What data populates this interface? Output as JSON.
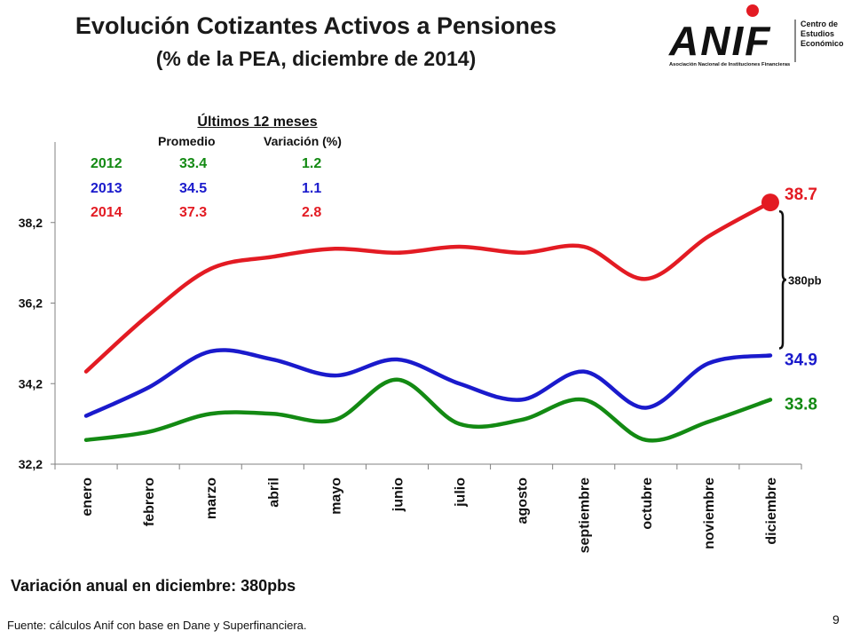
{
  "header": {
    "title": "Evolución Cotizantes Activos a Pensiones",
    "subtitle": "(% de la PEA, diciembre de 2014)"
  },
  "logo": {
    "text": "ANIF",
    "caption": "Asociación Nacional de Instituciones Financieras",
    "side_lines": [
      "Centro de",
      "Estudios",
      "Económicos"
    ],
    "accent_color": "#e31b23"
  },
  "summary": {
    "title": "Últimos 12 meses",
    "col_avg": "Promedio",
    "col_var": "Variación (%)",
    "rows": [
      {
        "year": "2012",
        "avg": "33.4",
        "var": "1.2",
        "color": "#138a13"
      },
      {
        "year": "2013",
        "avg": "34.5",
        "var": "1.1",
        "color": "#1a1acc"
      },
      {
        "year": "2014",
        "avg": "37.3",
        "var": "2.8",
        "color": "#e31b23"
      }
    ]
  },
  "chart_data": {
    "type": "line",
    "categories": [
      "enero",
      "febrero",
      "marzo",
      "abril",
      "mayo",
      "junio",
      "julio",
      "agosto",
      "septiembre",
      "octubre",
      "noviembre",
      "diciembre"
    ],
    "y_ticks": [
      "32,2",
      "34,2",
      "36,2",
      "38,2"
    ],
    "y_tick_values": [
      32.2,
      34.2,
      36.2,
      38.2
    ],
    "ylim": [
      32.2,
      40.2
    ],
    "series": [
      {
        "name": "2012",
        "color": "#138a13",
        "values": [
          32.8,
          33.0,
          33.45,
          33.45,
          33.3,
          34.3,
          33.2,
          33.3,
          33.8,
          32.8,
          33.25,
          33.8
        ],
        "end_label": "33.8"
      },
      {
        "name": "2013",
        "color": "#1a1acc",
        "values": [
          33.4,
          34.1,
          35.0,
          34.8,
          34.4,
          34.8,
          34.2,
          33.8,
          34.5,
          33.6,
          34.7,
          34.9
        ],
        "end_label": "34.9"
      },
      {
        "name": "2014",
        "color": "#e31b23",
        "values": [
          34.5,
          35.9,
          37.05,
          37.35,
          37.55,
          37.45,
          37.6,
          37.45,
          37.6,
          36.8,
          37.85,
          38.7
        ],
        "end_label": "38.7"
      }
    ],
    "annotation": "380pb",
    "grid": false
  },
  "footer": {
    "note": "Variación anual en diciembre: 380pbs",
    "source": "Fuente:  cálculos Anif con base en Dane y Superfinanciera.",
    "page": "9"
  }
}
